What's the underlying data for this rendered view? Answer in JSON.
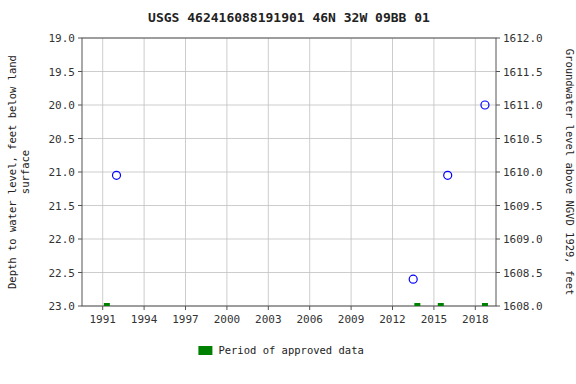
{
  "chart_data": {
    "type": "scatter",
    "title": "USGS 462416088191901 46N 32W 09BB 01",
    "ylabel": "Depth to water level, feet below land\nsurface",
    "y2label": "Groundwater level above NGVD 1929, feet",
    "xlim": [
      1989.5,
      2019.5
    ],
    "xticks": [
      1991,
      1994,
      1997,
      2000,
      2003,
      2006,
      2009,
      2012,
      2015,
      2018
    ],
    "ylim": [
      23.0,
      19.0
    ],
    "yticks": [
      {
        "value": 19,
        "label": "19.0"
      },
      19.5,
      {
        "value": 20,
        "label": "20.0"
      },
      20.5,
      {
        "value": 21,
        "label": "21.0"
      },
      21.5,
      {
        "value": 22,
        "label": "22.0"
      },
      22.5,
      {
        "value": 23,
        "label": "23.0"
      }
    ],
    "y2lim": [
      1608.0,
      1612.0
    ],
    "y2ticks": [
      {
        "value": 1612,
        "label": "1612.0"
      },
      1611.5,
      {
        "value": 1611,
        "label": "1611.0"
      },
      1610.5,
      {
        "value": 1610,
        "label": "1610.0"
      },
      1609.5,
      {
        "value": 1609,
        "label": "1609.0"
      },
      1608.5,
      {
        "value": 1608,
        "label": "1608.0"
      }
    ],
    "grid": true,
    "legend": "bottom",
    "series": [
      {
        "x": [
          1992.0,
          2013.5,
          2016.0,
          2018.7
        ],
        "values": [
          21.05,
          22.6,
          21.05,
          20.0
        ],
        "color": "#0000ff",
        "marker": "circle"
      },
      {
        "name": "Period of approved data",
        "x": [
          1991.3,
          2013.8,
          2015.5,
          2018.7
        ],
        "values": [
          23.0,
          23.0,
          23.0,
          23.0
        ],
        "color": "#008000",
        "marker": "square"
      }
    ]
  }
}
